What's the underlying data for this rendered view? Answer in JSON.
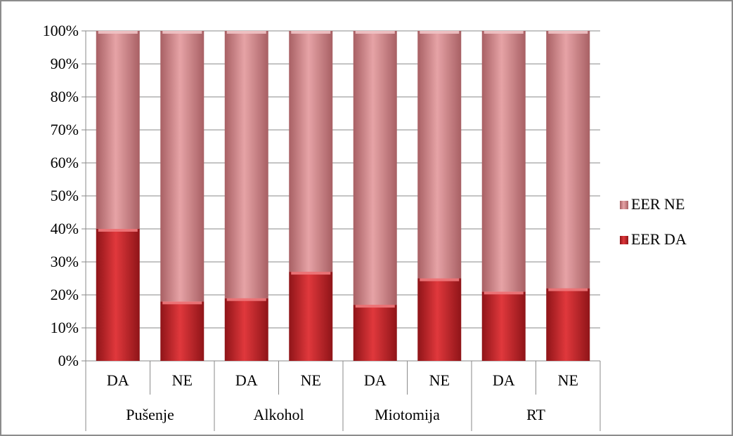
{
  "chart_data": {
    "type": "bar",
    "stacked": "percent",
    "categories": [
      "DA",
      "NE",
      "DA",
      "NE",
      "DA",
      "NE",
      "DA",
      "NE"
    ],
    "groups": [
      {
        "label": "Pušenje",
        "span": 2
      },
      {
        "label": "Alkohol",
        "span": 2
      },
      {
        "label": "Miotomija",
        "span": 2
      },
      {
        "label": "RT",
        "span": 2
      }
    ],
    "series": [
      {
        "name": "EER DA",
        "values": [
          40,
          18,
          19,
          27,
          17,
          25,
          21,
          22
        ],
        "color": "#c0262b"
      },
      {
        "name": "EER NE",
        "values": [
          60,
          82,
          81,
          73,
          83,
          75,
          79,
          78
        ],
        "color": "#d48c8f"
      }
    ],
    "legend_order": [
      "EER NE",
      "EER DA"
    ],
    "y_ticks": [
      "0%",
      "10%",
      "20%",
      "30%",
      "40%",
      "50%",
      "60%",
      "70%",
      "80%",
      "90%",
      "100%"
    ],
    "ylim": [
      0,
      100
    ],
    "grid": true,
    "legend_position": "right"
  }
}
